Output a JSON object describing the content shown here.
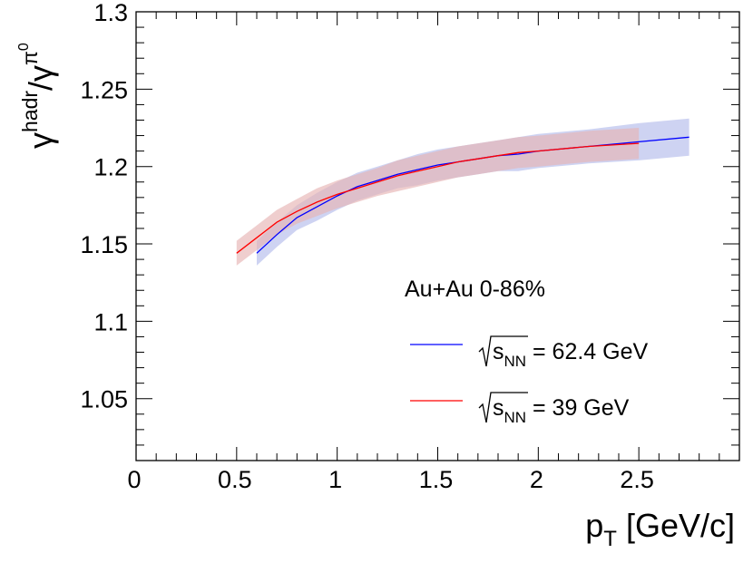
{
  "chart_data": {
    "type": "line",
    "title": "",
    "xlabel": {
      "main": "p",
      "sub": "T",
      "unit": " [GeV/c]"
    },
    "ylabel": {
      "base": "γ",
      "sup": "hadr",
      "slash": "/",
      "base2": "γ",
      "sup2": "π",
      "sup2sup": "0"
    },
    "xlim": [
      0,
      3
    ],
    "ylim": [
      1.01,
      1.3
    ],
    "xticks": [
      0,
      0.5,
      1,
      1.5,
      2,
      2.5
    ],
    "xtick_labels": [
      "0",
      "0.5",
      "1",
      "1.5",
      "2",
      "2.5"
    ],
    "yticks": [
      1.05,
      1.1,
      1.15,
      1.2,
      1.25,
      1.3
    ],
    "ytick_labels": [
      "1.05",
      "1.1",
      "1.15",
      "1.2",
      "1.25",
      "1.3"
    ],
    "grid": false,
    "legend_title": "Au+Au 0-86%",
    "legend_position": "lower-right",
    "series": [
      {
        "name": "62.4 GeV",
        "legend_prefix": "s",
        "legend_sub": "NN",
        "legend_suffix": " = 62.4 GeV",
        "color": "#0000ff",
        "band_color": "#b4bceb",
        "x": [
          0.6,
          0.7,
          0.8,
          0.9,
          1.0,
          1.1,
          1.2,
          1.3,
          1.4,
          1.5,
          1.6,
          1.7,
          1.8,
          1.9,
          2.0,
          2.25,
          2.5,
          2.75
        ],
        "y": [
          1.144,
          1.156,
          1.167,
          1.174,
          1.181,
          1.187,
          1.191,
          1.195,
          1.198,
          1.201,
          1.203,
          1.205,
          1.207,
          1.208,
          1.21,
          1.213,
          1.216,
          1.219
        ],
        "err": [
          0.008,
          0.008,
          0.008,
          0.009,
          0.009,
          0.009,
          0.009,
          0.009,
          0.01,
          0.01,
          0.01,
          0.01,
          0.01,
          0.011,
          0.011,
          0.011,
          0.012,
          0.012
        ]
      },
      {
        "name": "39 GeV",
        "legend_prefix": "s",
        "legend_sub": "NN",
        "legend_suffix": " = 39 GeV",
        "color": "#ff0000",
        "band_color": "#e6b4b4",
        "x": [
          0.5,
          0.6,
          0.7,
          0.8,
          0.9,
          1.0,
          1.1,
          1.2,
          1.3,
          1.4,
          1.5,
          1.6,
          1.7,
          1.8,
          1.9,
          2.0,
          2.25,
          2.5
        ],
        "y": [
          1.144,
          1.154,
          1.164,
          1.171,
          1.177,
          1.182,
          1.186,
          1.19,
          1.194,
          1.197,
          1.2,
          1.203,
          1.205,
          1.207,
          1.209,
          1.21,
          1.213,
          1.215
        ],
        "err": [
          0.008,
          0.008,
          0.008,
          0.008,
          0.009,
          0.009,
          0.009,
          0.009,
          0.01,
          0.01,
          0.01,
          0.01,
          0.01,
          0.01,
          0.01,
          0.01,
          0.01,
          0.01
        ]
      }
    ]
  }
}
